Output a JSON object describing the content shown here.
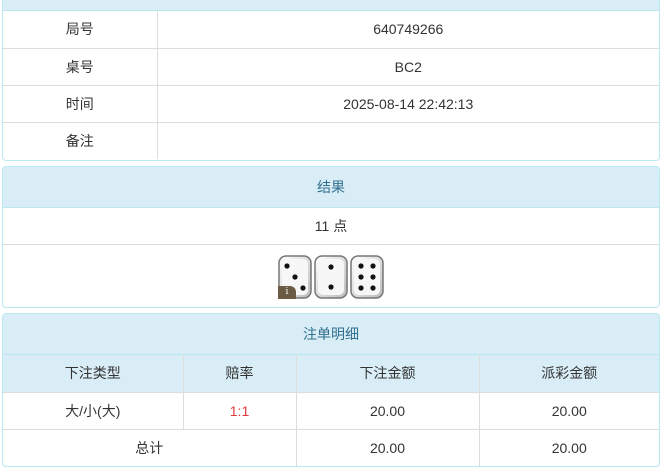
{
  "info": {
    "rows": [
      {
        "label": "局号",
        "value": "640749266"
      },
      {
        "label": "桌号",
        "value": "BC2"
      },
      {
        "label": "时间",
        "value": "2025-08-14 22:42:13"
      },
      {
        "label": "备注",
        "value": ""
      }
    ]
  },
  "result": {
    "title": "结果",
    "points": "11 点",
    "dice": [
      3,
      2,
      6
    ],
    "badge": "i"
  },
  "bets": {
    "title": "注单明细",
    "headers": [
      "下注类型",
      "赔率",
      "下注金额",
      "派彩金额"
    ],
    "row": {
      "type": "大/小(大)",
      "odds": "1:1",
      "amount": "20.00",
      "payout": "20.00"
    },
    "total": {
      "label": "总计",
      "amount": "20.00",
      "payout": "20.00"
    },
    "odds_color": "#e4393c"
  }
}
